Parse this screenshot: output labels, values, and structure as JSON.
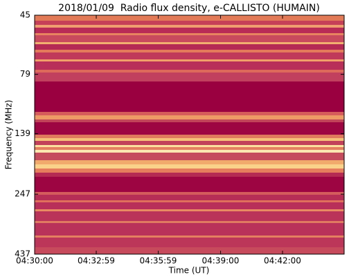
{
  "chart_data": {
    "type": "spectrogram",
    "title": "2018/01/09  Radio flux density, e-CALLISTO (HUMAIN)",
    "x_label": "Time (UT)",
    "y_label": "Frequency (MHz)",
    "xlim": [
      "04:30:00",
      "04:44:59"
    ],
    "xticks": [
      "04:30:00",
      "04:32:59",
      "04:35:59",
      "04:39:00",
      "04:42:00"
    ],
    "ylim": [
      437,
      45
    ],
    "yticks": [
      45,
      79,
      139,
      247,
      437
    ],
    "yscale": "log"
  }
}
